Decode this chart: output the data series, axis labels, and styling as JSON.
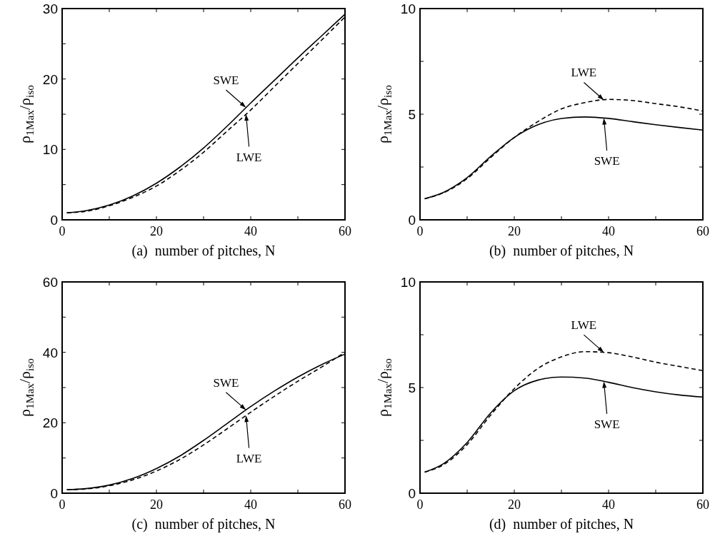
{
  "chart_data": [
    {
      "type": "line",
      "xlabel": "(a)  number of pitches, N",
      "ylabel": "ρ$_{1Max}$/ρ$_{iso}$",
      "x": [
        1,
        5,
        10,
        15,
        20,
        25,
        30,
        35,
        40,
        45,
        50,
        55,
        60
      ],
      "xlim": [
        0,
        60
      ],
      "xticks": [
        0,
        {
          "value": 10,
          "label": null
        },
        20,
        {
          "value": 30,
          "label": null
        },
        40,
        {
          "value": 50,
          "label": null
        },
        60
      ],
      "ylim": [
        0,
        30
      ],
      "yticks": [
        0,
        {
          "value": 5,
          "label": null
        },
        10,
        {
          "value": 15,
          "label": null
        },
        20,
        {
          "value": 25,
          "label": null
        },
        30
      ],
      "grid": false,
      "series": [
        {
          "name": "SWE",
          "color": "#000000",
          "line_style": "solid",
          "values": [
            1,
            1.3,
            2.1,
            3.4,
            5.2,
            7.5,
            10.2,
            13.3,
            16.6,
            19.8,
            23.0,
            26.1,
            29.2
          ]
        },
        {
          "name": "LWE",
          "color": "#000000",
          "line_style": "dashed",
          "values": [
            1,
            1.2,
            2.0,
            3.2,
            4.8,
            7.0,
            9.6,
            12.6,
            15.6,
            18.9,
            22.2,
            25.5,
            28.8
          ]
        }
      ]
    },
    {
      "type": "line",
      "xlabel": "(b)  number of pitches, N",
      "ylabel": "ρ$_{1Max}$/ρ$_{iso}$",
      "x": [
        1,
        5,
        10,
        15,
        20,
        25,
        30,
        35,
        40,
        45,
        50,
        55,
        60
      ],
      "xlim": [
        0,
        60
      ],
      "xticks": [
        0,
        {
          "value": 10,
          "label": null
        },
        20,
        {
          "value": 30,
          "label": null
        },
        40,
        {
          "value": 50,
          "label": null
        },
        60
      ],
      "ylim": [
        0,
        10
      ],
      "yticks": [
        0,
        {
          "value": 2.5,
          "label": null
        },
        5,
        {
          "value": 7.5,
          "label": null
        },
        10
      ],
      "grid": false,
      "series": [
        {
          "name": "SWE",
          "color": "#000000",
          "line_style": "solid",
          "values": [
            1,
            1.3,
            2.0,
            3.0,
            3.9,
            4.5,
            4.8,
            4.87,
            4.8,
            4.65,
            4.5,
            4.37,
            4.25
          ]
        },
        {
          "name": "LWE",
          "color": "#000000",
          "line_style": "dashed",
          "values": [
            1,
            1.28,
            1.95,
            2.95,
            3.9,
            4.65,
            5.25,
            5.55,
            5.7,
            5.65,
            5.5,
            5.35,
            5.15
          ]
        }
      ]
    },
    {
      "type": "line",
      "xlabel": "(c)  number of pitches, N",
      "ylabel": "ρ$_{1Max}$/ρ$_{iso}$",
      "x": [
        1,
        5,
        10,
        15,
        20,
        25,
        30,
        35,
        40,
        45,
        50,
        55,
        60
      ],
      "xlim": [
        0,
        60
      ],
      "xticks": [
        0,
        {
          "value": 10,
          "label": null
        },
        20,
        {
          "value": 30,
          "label": null
        },
        40,
        {
          "value": 50,
          "label": null
        },
        60
      ],
      "ylim": [
        0,
        60
      ],
      "yticks": [
        0,
        {
          "value": 10,
          "label": null
        },
        20,
        {
          "value": 30,
          "label": null
        },
        40,
        {
          "value": 50,
          "label": null
        },
        60
      ],
      "grid": false,
      "series": [
        {
          "name": "SWE",
          "color": "#000000",
          "line_style": "solid",
          "values": [
            1,
            1.3,
            2.3,
            4.2,
            7.0,
            10.6,
            15.0,
            19.8,
            24.6,
            29.0,
            33.0,
            36.5,
            39.5
          ]
        },
        {
          "name": "LWE",
          "color": "#000000",
          "line_style": "dashed",
          "values": [
            1,
            1.2,
            2.1,
            3.8,
            6.3,
            9.6,
            13.7,
            18.3,
            23.0,
            27.5,
            31.8,
            35.8,
            40.0
          ]
        }
      ]
    },
    {
      "type": "line",
      "xlabel": "(d)  number of pitches, N",
      "ylabel": "ρ$_{1Max}$/ρ$_{iso}$",
      "x": [
        1,
        5,
        10,
        15,
        20,
        25,
        30,
        35,
        40,
        45,
        50,
        55,
        60
      ],
      "xlim": [
        0,
        60
      ],
      "xticks": [
        0,
        {
          "value": 10,
          "label": null
        },
        20,
        {
          "value": 30,
          "label": null
        },
        40,
        {
          "value": 50,
          "label": null
        },
        60
      ],
      "ylim": [
        0,
        10
      ],
      "yticks": [
        0,
        {
          "value": 2.5,
          "label": null
        },
        5,
        {
          "value": 7.5,
          "label": null
        },
        10
      ],
      "grid": false,
      "series": [
        {
          "name": "SWE",
          "color": "#000000",
          "line_style": "solid",
          "values": [
            1,
            1.4,
            2.4,
            3.8,
            4.85,
            5.35,
            5.5,
            5.45,
            5.25,
            5.0,
            4.8,
            4.65,
            4.55
          ]
        },
        {
          "name": "LWE",
          "color": "#000000",
          "line_style": "dashed",
          "values": [
            1,
            1.35,
            2.3,
            3.7,
            4.95,
            5.9,
            6.45,
            6.7,
            6.65,
            6.45,
            6.2,
            6.0,
            5.8
          ]
        }
      ]
    }
  ]
}
